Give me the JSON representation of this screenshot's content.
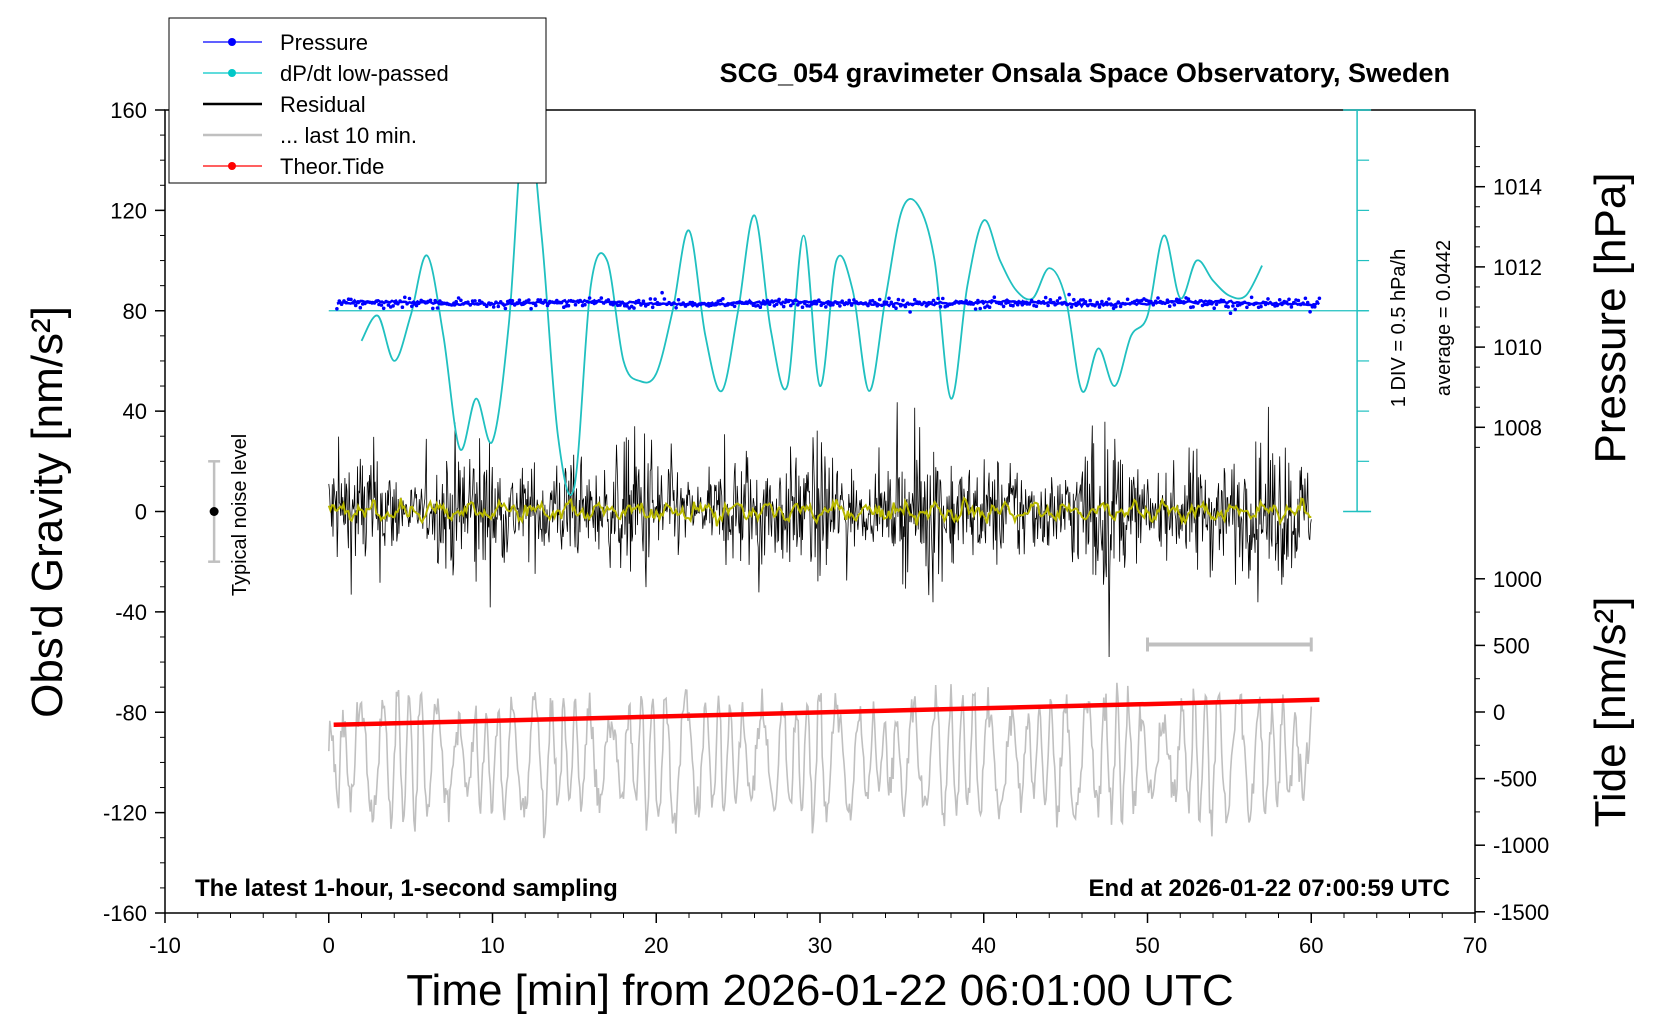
{
  "chart_data": {
    "type": "line",
    "title": "SCG_054 gravimeter Onsala Space Observatory, Sweden",
    "xlabel": "Time [min] from 2026-01-22 06:01:00 UTC",
    "ylabel_left": "Obs'd Gravity [nm/s²]",
    "ylabel_pressure": "Pressure [hPa]",
    "ylabel_tide": "Tide [nm/s²]",
    "x_ticks": [
      "-10",
      "0",
      "10",
      "20",
      "30",
      "40",
      "50",
      "60",
      "70"
    ],
    "x_range": [
      -10,
      70
    ],
    "y_left_ticks": [
      "160",
      "120",
      "80",
      "40",
      "0",
      "-40",
      "-80",
      "-120",
      "-160"
    ],
    "y_left_range": [
      -160,
      160
    ],
    "y_pressure_ticks": [
      "1014",
      "1012",
      "1010",
      "1008"
    ],
    "y_pressure_values": [
      1014,
      1012,
      1010,
      1008
    ],
    "y_tide_ticks": [
      "1000",
      "500",
      "0",
      "-500",
      "-1000",
      "-1500"
    ],
    "y_tide_range": [
      -1500,
      1000
    ],
    "legend": [
      {
        "label": "Pressure",
        "color": "#0000ff",
        "marker": "dot"
      },
      {
        "label": "dP/dt low-passed",
        "color": "#00c8c8",
        "marker": "dot"
      },
      {
        "label": "Residual",
        "color": "#000000",
        "marker": "none"
      },
      {
        "label": "... last 10 min.",
        "color": "#c0c0c0",
        "marker": "none"
      },
      {
        "label": "Theor.Tide",
        "color": "#ff0000",
        "marker": "dot"
      }
    ],
    "annotations": {
      "div_scale": "1 DIV = 0.5 hPa/h",
      "average": "average = 0.0442",
      "noise": "Typical noise level",
      "bottom_left": "The latest 1-hour, 1-second sampling",
      "bottom_right": "End at 2026-01-22 07:00:59 UTC"
    },
    "pressure": {
      "x_range": [
        0.5,
        60.5
      ],
      "value": 1011.1
    },
    "dpdt_series": {
      "x": [
        2,
        3,
        4,
        5,
        6,
        7,
        8,
        9,
        10,
        11,
        12,
        13,
        14,
        15,
        16,
        17,
        18,
        19,
        20,
        21,
        22,
        23,
        24,
        25,
        26,
        27,
        28,
        29,
        30,
        31,
        32,
        33,
        34,
        35,
        36,
        37,
        38,
        39,
        40,
        41,
        42,
        43,
        44,
        45,
        46,
        47,
        48,
        49,
        50,
        51,
        52,
        53,
        54,
        55,
        56,
        57
      ],
      "y": [
        68,
        78,
        60,
        78,
        102,
        70,
        25,
        45,
        28,
        75,
        160,
        110,
        30,
        10,
        90,
        100,
        60,
        52,
        55,
        80,
        112,
        70,
        48,
        80,
        118,
        72,
        50,
        110,
        50,
        100,
        88,
        48,
        85,
        120,
        122,
        100,
        45,
        90,
        116,
        100,
        88,
        85,
        97,
        85,
        48,
        65,
        50,
        70,
        78,
        110,
        85,
        100,
        92,
        86,
        86,
        98
      ]
    },
    "residual": {
      "x_range": [
        0,
        60
      ],
      "center": 0
    },
    "tide": {
      "x": [
        0.3,
        60.5
      ],
      "y": [
        -85,
        -75
      ]
    },
    "last10_bar": {
      "x": [
        50,
        60
      ],
      "y": -53
    }
  }
}
